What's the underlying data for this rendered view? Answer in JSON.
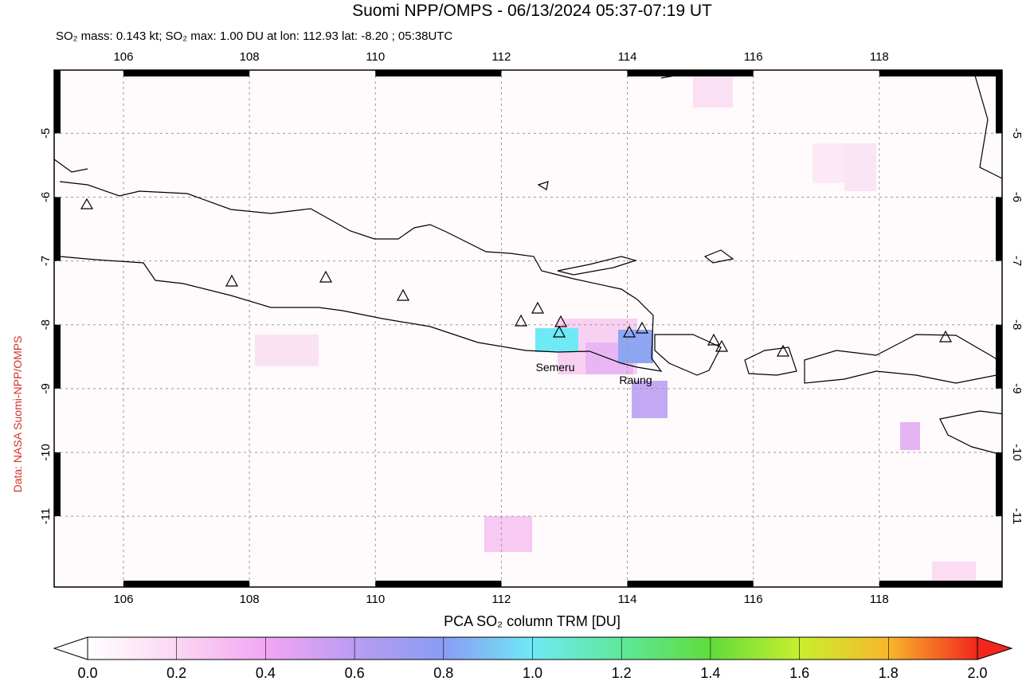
{
  "map": {
    "title": "Suomi NPP/OMPS - 06/13/2024 05:37-07:19 UT",
    "subtitle": "SO₂ mass: 0.143 kt; SO₂ max: 1.00 DU at lon: 112.93 lat: -8.20 ; 05:38UTC",
    "lon_range": [
      104.9,
      119.95
    ],
    "lat_range": [
      -4.01,
      -12.11
    ],
    "lon_ticks": [
      106,
      108,
      110,
      112,
      114,
      116,
      118
    ],
    "lat_ticks": [
      -5,
      -6,
      -7,
      -8,
      -9,
      -10,
      -11
    ],
    "annotations": [
      "Semeru",
      "Raung"
    ],
    "credit": "Data: NASA Suomi-NPP/OMPS",
    "colorbar": {
      "label": "PCA SO₂ column TRM [DU]",
      "range": [
        0,
        2
      ],
      "ticks": [
        {
          "value": 0,
          "label": "0.0"
        },
        {
          "value": 0.2,
          "label": "0.2"
        },
        {
          "value": 0.4,
          "label": "0.4"
        },
        {
          "value": 0.6,
          "label": "0.6"
        },
        {
          "value": 0.8,
          "label": "0.8"
        },
        {
          "value": 1,
          "label": "1.0"
        },
        {
          "value": 1.2,
          "label": "1.2"
        },
        {
          "value": 1.4,
          "label": "1.4"
        },
        {
          "value": 1.6,
          "label": "1.6"
        },
        {
          "value": 1.8,
          "label": "1.8"
        },
        {
          "value": 2,
          "label": "2.0"
        }
      ]
    }
  }
}
